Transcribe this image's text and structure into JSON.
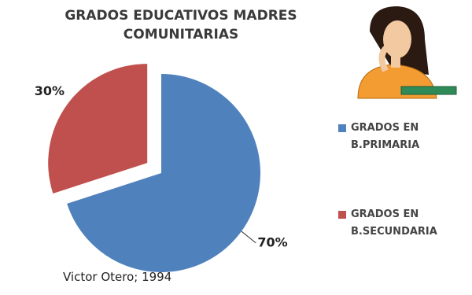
{
  "chart_data": {
    "type": "pie",
    "title": "GRADOS EDUCATIVOS MADRES COMUNITARIAS",
    "categories": [
      "GRADOS EN B.PRIMARIA",
      "GRADOS EN B.SECUNDARIA"
    ],
    "values": [
      70,
      30
    ],
    "value_labels": [
      "70%",
      "30%"
    ],
    "colors": [
      "#4f81bd",
      "#c0504d"
    ],
    "legend": "right",
    "source": "Victor Otero; 1994"
  }
}
